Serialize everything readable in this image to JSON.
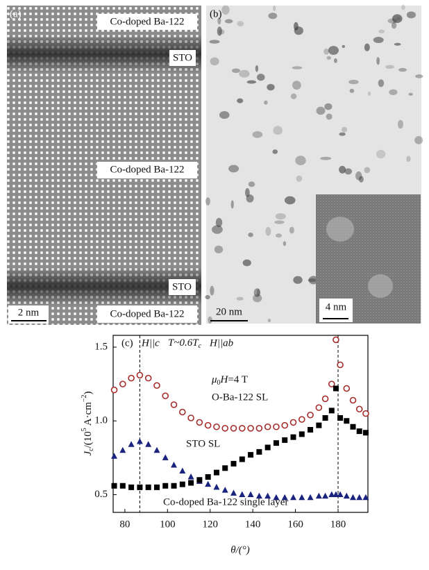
{
  "panels": {
    "a": {
      "label": "(a)",
      "layers": [
        "Co-doped Ba-122",
        "STO",
        "Co-doped Ba-122",
        "STO",
        "Co-doped Ba-122"
      ],
      "scale_bar": "2 nm"
    },
    "b": {
      "label": "(b)",
      "scale_bar": "20 nm",
      "inset_scale_bar": "4 nm"
    }
  },
  "chart_data": {
    "type": "scatter",
    "panel_label": "(c)",
    "annotations": {
      "field_c": "H||c",
      "temperature": "T~0.6T",
      "temperature_sub": "c",
      "field_ab": "H||ab",
      "field_mu": "μ",
      "field_sub": "0",
      "field_h": "H",
      "field_value": "=4 T"
    },
    "x_label": "θ/(°)",
    "y_label": {
      "j": "J",
      "j_sub": "c",
      "unit_a": "/(10",
      "unit_exp": "5",
      "unit_b": " A·cm",
      "unit_exp2": "−2",
      "unit_c": ")"
    },
    "x": [
      75,
      79,
      83,
      87,
      91,
      95,
      99,
      103,
      107,
      111,
      115,
      119,
      123,
      127,
      131,
      135,
      139,
      143,
      147,
      151,
      155,
      159,
      163,
      167,
      171,
      174,
      177,
      179,
      181,
      184,
      187,
      190,
      193
    ],
    "series": [
      {
        "name": "O-Ba-122 SL",
        "color": "#a52a2a",
        "marker": "circle",
        "values": [
          1.21,
          1.25,
          1.29,
          1.31,
          1.29,
          1.24,
          1.17,
          1.11,
          1.06,
          1.02,
          0.99,
          0.97,
          0.96,
          0.95,
          0.95,
          0.95,
          0.95,
          0.95,
          0.96,
          0.96,
          0.97,
          0.99,
          1.01,
          1.04,
          1.09,
          1.15,
          1.25,
          1.55,
          1.38,
          1.22,
          1.14,
          1.08,
          1.05
        ]
      },
      {
        "name": "STO SL",
        "color": "#1a237e",
        "marker": "triangle",
        "values": [
          0.76,
          0.8,
          0.84,
          0.86,
          0.84,
          0.8,
          0.75,
          0.7,
          0.66,
          0.62,
          0.59,
          0.57,
          0.55,
          0.53,
          0.51,
          0.5,
          0.5,
          0.49,
          0.49,
          0.48,
          0.48,
          0.48,
          0.48,
          0.48,
          0.49,
          0.49,
          0.5,
          0.5,
          0.5,
          0.49,
          0.48,
          0.48,
          0.48
        ]
      },
      {
        "name": "Co-doped Ba-122 single layer",
        "color": "#000000",
        "marker": "square",
        "values": [
          0.56,
          0.56,
          0.55,
          0.55,
          0.55,
          0.55,
          0.56,
          0.56,
          0.57,
          0.58,
          0.6,
          0.62,
          0.65,
          0.68,
          0.71,
          0.74,
          0.77,
          0.79,
          0.82,
          0.85,
          0.87,
          0.89,
          0.91,
          0.94,
          0.97,
          1.02,
          1.07,
          1.22,
          1.02,
          1.0,
          0.96,
          0.93,
          0.92
        ]
      }
    ],
    "reference_lines": [
      87,
      180
    ],
    "xlim": [
      74.5,
      194
    ],
    "xticks": [
      80,
      100,
      120,
      140,
      160,
      180
    ],
    "ylim": [
      0.38,
      1.58
    ],
    "yticks": [
      0.5,
      {
        "value": 1,
        "label": "1.0"
      },
      1.5
    ]
  }
}
